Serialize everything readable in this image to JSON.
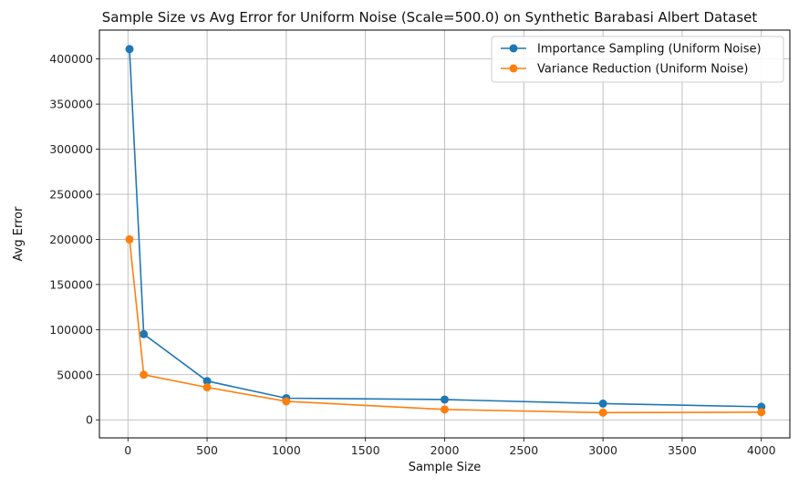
{
  "chart_data": {
    "type": "line",
    "title": "Sample Size vs Avg Error for Uniform Noise (Scale=500.0) on Synthetic Barabasi Albert Dataset",
    "xlabel": "Sample Size",
    "ylabel": "Avg Error",
    "xlim": [
      -180,
      4180
    ],
    "ylim": [
      -20000,
      432000
    ],
    "xticks": [
      0,
      500,
      1000,
      1500,
      2000,
      2500,
      3000,
      3500,
      4000
    ],
    "yticks": [
      0,
      50000,
      100000,
      150000,
      200000,
      250000,
      300000,
      350000,
      400000
    ],
    "grid": true,
    "legend_position": "top-right",
    "x": [
      10,
      100,
      500,
      1000,
      2000,
      3000,
      4000
    ],
    "series": [
      {
        "name": "Importance Sampling (Uniform Noise)",
        "color": "#1f77b4",
        "marker": "circle",
        "values": [
          411000,
          95000,
          43000,
          24000,
          22500,
          18000,
          14500
        ]
      },
      {
        "name": "Variance Reduction (Uniform Noise)",
        "color": "#ff7f0e",
        "marker": "circle",
        "values": [
          200000,
          50000,
          36000,
          20500,
          11500,
          8000,
          8500
        ]
      }
    ]
  }
}
